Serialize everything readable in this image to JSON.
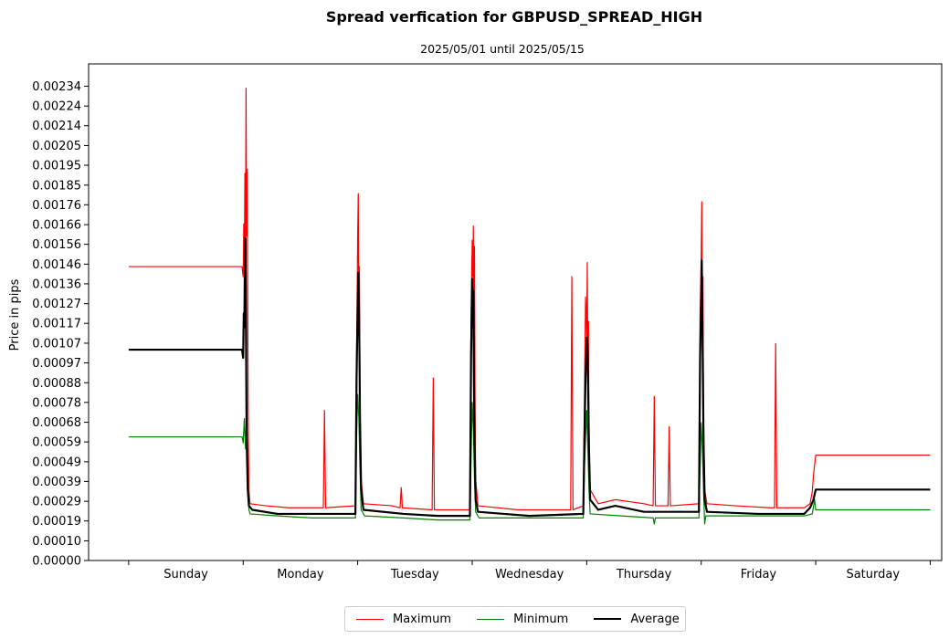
{
  "chart_data": {
    "type": "line",
    "title": "Spread verfication for GBPUSD_SPREAD_HIGH",
    "subtitle": "2025/05/01 until 2025/05/15",
    "ylabel": "Price in pips",
    "xlabel": "",
    "ylim": [
      0,
      0.00245
    ],
    "xlim": [
      -0.35,
      7.1
    ],
    "y_ticks": [
      "0.00000",
      "0.00010",
      "0.00019",
      "0.00029",
      "0.00039",
      "0.00049",
      "0.00059",
      "0.00068",
      "0.00078",
      "0.00088",
      "0.00097",
      "0.00107",
      "0.00117",
      "0.00127",
      "0.00136",
      "0.00146",
      "0.00156",
      "0.00166",
      "0.00176",
      "0.00185",
      "0.00195",
      "0.00205",
      "0.00214",
      "0.00224",
      "0.00234"
    ],
    "y_tick_values": [
      0.0,
      9.7e-05,
      0.000195,
      0.000292,
      0.00039,
      0.000487,
      0.000585,
      0.000682,
      0.00078,
      0.000877,
      0.000975,
      0.001072,
      0.00117,
      0.001267,
      0.001365,
      0.001462,
      0.00156,
      0.001657,
      0.001755,
      0.001852,
      0.00195,
      0.002047,
      0.002145,
      0.002242,
      0.00234
    ],
    "categories": [
      "Sunday",
      "Monday",
      "Tuesday",
      "Wednesday",
      "Thursday",
      "Friday",
      "Saturday"
    ],
    "grid": false,
    "legend_position": "bottom-center",
    "series": [
      {
        "name": "Maximum",
        "color": "#ff0000",
        "width": 1.2,
        "points": [
          [
            0,
            0.00145
          ],
          [
            0.99,
            0.00145
          ],
          [
            1.0,
            0.0014
          ],
          [
            1.005,
            0.00166
          ],
          [
            1.01,
            0.00145
          ],
          [
            1.015,
            0.00191
          ],
          [
            1.02,
            0.0015
          ],
          [
            1.025,
            0.00233
          ],
          [
            1.03,
            0.0016
          ],
          [
            1.035,
            0.00193
          ],
          [
            1.04,
            0.0012
          ],
          [
            1.045,
            0.0006
          ],
          [
            1.05,
            0.00035
          ],
          [
            1.06,
            0.00028
          ],
          [
            1.2,
            0.00027
          ],
          [
            1.4,
            0.00026
          ],
          [
            1.7,
            0.00026
          ],
          [
            1.71,
            0.00074
          ],
          [
            1.72,
            0.00026
          ],
          [
            1.98,
            0.00027
          ],
          [
            1.99,
            0.001
          ],
          [
            2.0,
            0.0016
          ],
          [
            2.005,
            0.00181
          ],
          [
            2.01,
            0.0012
          ],
          [
            2.015,
            0.00145
          ],
          [
            2.02,
            0.0008
          ],
          [
            2.03,
            0.0004
          ],
          [
            2.05,
            0.00028
          ],
          [
            2.3,
            0.00027
          ],
          [
            2.37,
            0.00026
          ],
          [
            2.38,
            0.00036
          ],
          [
            2.39,
            0.00026
          ],
          [
            2.65,
            0.00025
          ],
          [
            2.66,
            0.0009
          ],
          [
            2.67,
            0.00025
          ],
          [
            2.98,
            0.00025
          ],
          [
            2.99,
            0.0012
          ],
          [
            3.0,
            0.00158
          ],
          [
            3.005,
            0.0014
          ],
          [
            3.01,
            0.00165
          ],
          [
            3.015,
            0.001
          ],
          [
            3.02,
            0.00155
          ],
          [
            3.025,
            0.0008
          ],
          [
            3.03,
            0.0004
          ],
          [
            3.05,
            0.00027
          ],
          [
            3.4,
            0.00025
          ],
          [
            3.86,
            0.00025
          ],
          [
            3.87,
            0.0014
          ],
          [
            3.88,
            0.00025
          ],
          [
            3.97,
            0.00027
          ],
          [
            3.98,
            0.0008
          ],
          [
            3.99,
            0.0013
          ],
          [
            4.0,
            0.0011
          ],
          [
            4.005,
            0.00147
          ],
          [
            4.01,
            0.0009
          ],
          [
            4.015,
            0.00118
          ],
          [
            4.02,
            0.0006
          ],
          [
            4.03,
            0.00035
          ],
          [
            4.1,
            0.00028
          ],
          [
            4.25,
            0.0003
          ],
          [
            4.5,
            0.00028
          ],
          [
            4.58,
            0.00027
          ],
          [
            4.59,
            0.00081
          ],
          [
            4.6,
            0.00027
          ],
          [
            4.71,
            0.00027
          ],
          [
            4.72,
            0.00066
          ],
          [
            4.73,
            0.00027
          ],
          [
            4.98,
            0.00028
          ],
          [
            4.99,
            0.0012
          ],
          [
            5.0,
            0.0015
          ],
          [
            5.005,
            0.00177
          ],
          [
            5.01,
            0.0012
          ],
          [
            5.015,
            0.0014
          ],
          [
            5.02,
            0.0007
          ],
          [
            5.03,
            0.00035
          ],
          [
            5.05,
            0.00028
          ],
          [
            5.3,
            0.00027
          ],
          [
            5.6,
            0.00026
          ],
          [
            5.64,
            0.00026
          ],
          [
            5.65,
            0.00107
          ],
          [
            5.66,
            0.00026
          ],
          [
            5.9,
            0.00026
          ],
          [
            5.95,
            0.00028
          ],
          [
            5.97,
            0.00034
          ],
          [
            5.98,
            0.00042
          ],
          [
            6.0,
            0.00052
          ],
          [
            7.0,
            0.00052
          ]
        ]
      },
      {
        "name": "Minimum",
        "color": "#008000",
        "width": 1.2,
        "points": [
          [
            0,
            0.00061
          ],
          [
            0.99,
            0.00061
          ],
          [
            1.0,
            0.00058
          ],
          [
            1.01,
            0.0007
          ],
          [
            1.02,
            0.00055
          ],
          [
            1.03,
            0.00073
          ],
          [
            1.04,
            0.00045
          ],
          [
            1.05,
            0.00025
          ],
          [
            1.06,
            0.00023
          ],
          [
            1.3,
            0.00022
          ],
          [
            1.6,
            0.00021
          ],
          [
            1.98,
            0.00021
          ],
          [
            1.99,
            0.0006
          ],
          [
            2.0,
            0.00082
          ],
          [
            2.01,
            0.0007
          ],
          [
            2.02,
            0.00045
          ],
          [
            2.03,
            0.00025
          ],
          [
            2.06,
            0.00022
          ],
          [
            2.4,
            0.00021
          ],
          [
            2.7,
            0.0002
          ],
          [
            2.98,
            0.0002
          ],
          [
            2.99,
            0.0005
          ],
          [
            3.0,
            0.00078
          ],
          [
            3.01,
            0.00065
          ],
          [
            3.02,
            0.0004
          ],
          [
            3.03,
            0.00024
          ],
          [
            3.06,
            0.00021
          ],
          [
            3.4,
            0.00021
          ],
          [
            3.97,
            0.00021
          ],
          [
            3.98,
            0.00045
          ],
          [
            3.99,
            0.0006
          ],
          [
            4.0,
            0.00074
          ],
          [
            4.01,
            0.00055
          ],
          [
            4.02,
            0.00035
          ],
          [
            4.03,
            0.00023
          ],
          [
            4.3,
            0.00022
          ],
          [
            4.58,
            0.00021
          ],
          [
            4.59,
            0.00018
          ],
          [
            4.6,
            0.00021
          ],
          [
            4.98,
            0.00021
          ],
          [
            4.99,
            0.00045
          ],
          [
            5.0,
            0.00068
          ],
          [
            5.01,
            0.00055
          ],
          [
            5.02,
            0.00035
          ],
          [
            5.03,
            0.00018
          ],
          [
            5.04,
            0.00022
          ],
          [
            5.5,
            0.00022
          ],
          [
            5.9,
            0.00022
          ],
          [
            5.97,
            0.00023
          ],
          [
            5.99,
            0.0003
          ],
          [
            6.0,
            0.00025
          ],
          [
            7.0,
            0.00025
          ]
        ]
      },
      {
        "name": "Average",
        "color": "#000000",
        "width": 2.2,
        "points": [
          [
            0,
            0.00104
          ],
          [
            0.99,
            0.00104
          ],
          [
            1.0,
            0.001
          ],
          [
            1.005,
            0.00122
          ],
          [
            1.01,
            0.00115
          ],
          [
            1.015,
            0.0015
          ],
          [
            1.02,
            0.00159
          ],
          [
            1.025,
            0.0011
          ],
          [
            1.03,
            0.0006
          ],
          [
            1.04,
            0.00035
          ],
          [
            1.05,
            0.00027
          ],
          [
            1.08,
            0.00025
          ],
          [
            1.3,
            0.00023
          ],
          [
            1.6,
            0.00023
          ],
          [
            1.98,
            0.00023
          ],
          [
            1.99,
            0.0009
          ],
          [
            2.0,
            0.00125
          ],
          [
            2.005,
            0.00142
          ],
          [
            2.01,
            0.0013
          ],
          [
            2.015,
            0.00105
          ],
          [
            2.02,
            0.0007
          ],
          [
            2.03,
            0.00035
          ],
          [
            2.05,
            0.00025
          ],
          [
            2.4,
            0.00023
          ],
          [
            2.7,
            0.00022
          ],
          [
            2.98,
            0.00022
          ],
          [
            2.99,
            0.001
          ],
          [
            3.0,
            0.00139
          ],
          [
            3.005,
            0.0012
          ],
          [
            3.01,
            0.00133
          ],
          [
            3.015,
            0.0009
          ],
          [
            3.02,
            0.0006
          ],
          [
            3.03,
            0.0003
          ],
          [
            3.05,
            0.00024
          ],
          [
            3.5,
            0.00022
          ],
          [
            3.97,
            0.00023
          ],
          [
            3.98,
            0.0006
          ],
          [
            3.99,
            0.0009
          ],
          [
            4.0,
            0.0011
          ],
          [
            4.005,
            0.00108
          ],
          [
            4.01,
            0.00095
          ],
          [
            4.02,
            0.00055
          ],
          [
            4.03,
            0.0003
          ],
          [
            4.1,
            0.00025
          ],
          [
            4.25,
            0.00027
          ],
          [
            4.5,
            0.00024
          ],
          [
            4.98,
            0.00024
          ],
          [
            4.99,
            0.001
          ],
          [
            5.0,
            0.0013
          ],
          [
            5.005,
            0.00148
          ],
          [
            5.01,
            0.0012
          ],
          [
            5.015,
            0.0009
          ],
          [
            5.02,
            0.0006
          ],
          [
            5.03,
            0.0003
          ],
          [
            5.05,
            0.00024
          ],
          [
            5.5,
            0.00023
          ],
          [
            5.9,
            0.00023
          ],
          [
            5.95,
            0.00026
          ],
          [
            5.98,
            0.0003
          ],
          [
            6.0,
            0.00035
          ],
          [
            7.0,
            0.00035
          ]
        ]
      }
    ]
  }
}
